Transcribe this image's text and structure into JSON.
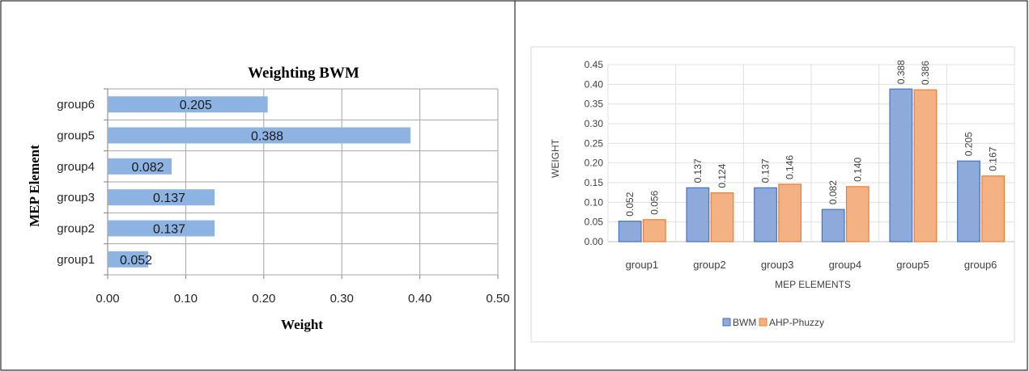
{
  "chart_data": [
    {
      "type": "bar",
      "orientation": "horizontal",
      "title": "Weighting BWM",
      "xlabel": "Weight",
      "ylabel": "MEP Element",
      "categories": [
        "group1",
        "group2",
        "group3",
        "group4",
        "group5",
        "group6"
      ],
      "values": [
        0.052,
        0.137,
        0.137,
        0.082,
        0.388,
        0.205
      ],
      "data_labels": [
        "0.052",
        "0.137",
        "0.137",
        "0.082",
        "0.388",
        "0.205"
      ],
      "xlim": [
        0,
        0.5
      ],
      "x_ticks": [
        "0.00",
        "0.10",
        "0.20",
        "0.30",
        "0.40",
        "0.50"
      ],
      "grid": true,
      "bar_color": "#8db3e2"
    },
    {
      "type": "bar",
      "title": "",
      "xlabel": "MEP ELEMENTS",
      "ylabel": "WEIGHT",
      "categories": [
        "group1",
        "group2",
        "group3",
        "group4",
        "group5",
        "group6"
      ],
      "ylim": [
        0,
        0.45
      ],
      "y_ticks": [
        "0.00",
        "0.05",
        "0.10",
        "0.15",
        "0.20",
        "0.25",
        "0.30",
        "0.35",
        "0.40",
        "0.45"
      ],
      "grid": true,
      "legend_position": "bottom",
      "series": [
        {
          "name": "BWM",
          "values": [
            0.052,
            0.137,
            0.137,
            0.082,
            0.388,
            0.205
          ],
          "labels": [
            "0.052",
            "0.137",
            "0.137",
            "0.082",
            "0.388",
            "0.205"
          ],
          "color": "#8eaadb",
          "stroke": "#4472c4"
        },
        {
          "name": "AHP-Phuzzy",
          "values": [
            0.056,
            0.124,
            0.146,
            0.14,
            0.386,
            0.167
          ],
          "labels": [
            "0.056",
            "0.124",
            "0.146",
            "0.140",
            "0.386",
            "0.167"
          ],
          "color": "#f4b183",
          "stroke": "#ed7d31"
        }
      ]
    }
  ]
}
